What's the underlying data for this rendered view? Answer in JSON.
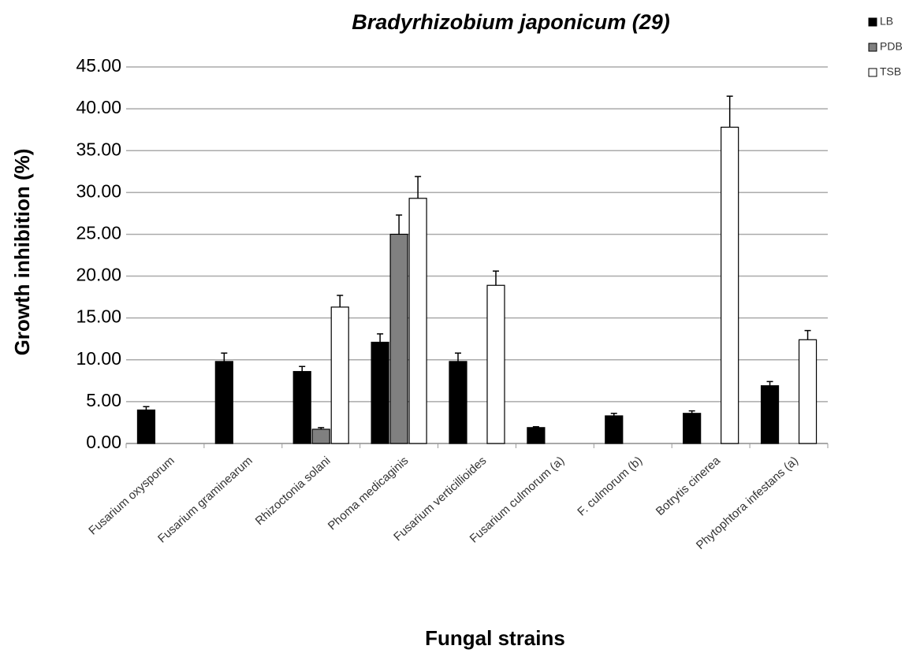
{
  "chart_data": {
    "type": "bar",
    "title": "Bradyrhizobium japonicum (29)",
    "x_label": "Fungal strains",
    "y_label": "Growth inhibition (%)",
    "categories": [
      "Fusarium oxysporum",
      "Fusarium graminearum",
      "Rhizoctonia solani",
      "Phoma medicaginis",
      "Fusarium verticillioides",
      "Fusarium culmorum (a)",
      "F. culmorum (b)",
      "Botrytis cinerea",
      "Phytophtora infestans (a)"
    ],
    "series": [
      {
        "name": "LB",
        "color": "#000000",
        "values": [
          4.0,
          9.8,
          8.6,
          12.1,
          9.8,
          1.9,
          3.3,
          3.6,
          6.9
        ],
        "errors": [
          0.4,
          1.0,
          0.6,
          1.0,
          1.0,
          0.1,
          0.3,
          0.3,
          0.5
        ]
      },
      {
        "name": "PDB",
        "color": "#808080",
        "values": [
          null,
          null,
          1.7,
          25.0,
          null,
          null,
          null,
          null,
          null
        ],
        "errors": [
          null,
          null,
          0.2,
          2.3,
          null,
          null,
          null,
          null,
          null
        ]
      },
      {
        "name": "TSB",
        "color": "#ffffff",
        "values": [
          null,
          null,
          16.3,
          29.3,
          18.9,
          null,
          null,
          37.8,
          12.4
        ],
        "errors": [
          null,
          null,
          1.4,
          2.6,
          1.7,
          null,
          null,
          3.7,
          1.1
        ]
      }
    ],
    "ylim": [
      0,
      45
    ],
    "yticks": [
      {
        "value": 0,
        "label": "0.00"
      },
      {
        "value": 5,
        "label": "5.00"
      },
      {
        "value": 10,
        "label": "10.00"
      },
      {
        "value": 15,
        "label": "15.00"
      },
      {
        "value": 20,
        "label": "20.00"
      },
      {
        "value": 25,
        "label": "25.00"
      },
      {
        "value": 30,
        "label": "30.00"
      },
      {
        "value": 35,
        "label": "35.00"
      },
      {
        "value": 40,
        "label": "40.00"
      },
      {
        "value": 45,
        "label": "45.00"
      }
    ],
    "grid": true,
    "legend": "top-right"
  }
}
